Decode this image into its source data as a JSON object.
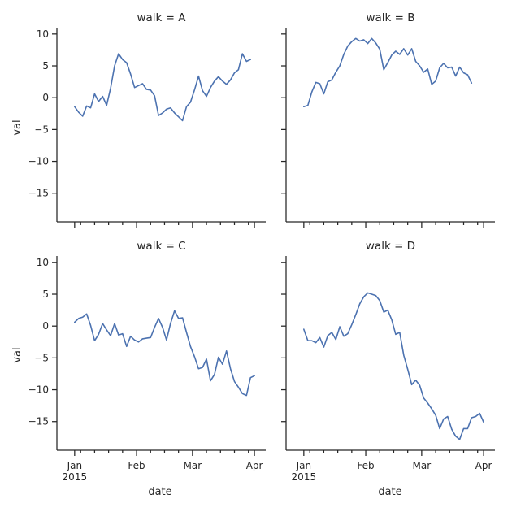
{
  "colors": {
    "line": "#4c72b0",
    "axis": "#262626",
    "background": "#ffffff"
  },
  "chart_data": {
    "type": "line",
    "facet_var": "walk",
    "xlabel": "date",
    "ylabel": "val",
    "xlim": [
      "2014-12-28",
      "2015-04-03"
    ],
    "ylim": [
      -19.5,
      11
    ],
    "yticks": [
      10,
      5,
      0,
      -5,
      -10,
      -15
    ],
    "xticks_major": [
      {
        "date": "2015-01-01",
        "label": "Jan",
        "sublabel": "2015"
      },
      {
        "date": "2015-02-01",
        "label": "Feb",
        "sublabel": ""
      },
      {
        "date": "2015-03-01",
        "label": "Mar",
        "sublabel": ""
      },
      {
        "date": "2015-04-01",
        "label": "Apr",
        "sublabel": ""
      }
    ],
    "xticks_minor": [
      "2015-01-04",
      "2015-01-11",
      "2015-01-18",
      "2015-01-25",
      "2015-02-08",
      "2015-02-15",
      "2015-02-22",
      "2015-03-08",
      "2015-03-15",
      "2015-03-22",
      "2015-03-29"
    ],
    "grid": false,
    "legend": "none",
    "panels": [
      {
        "title": "walk = A",
        "points": [
          [
            "2015-01-01",
            -1.4
          ],
          [
            "2015-01-03",
            -2.3
          ],
          [
            "2015-01-05",
            -2.9
          ],
          [
            "2015-01-07",
            -1.3
          ],
          [
            "2015-01-09",
            -1.6
          ],
          [
            "2015-01-11",
            0.6
          ],
          [
            "2015-01-13",
            -0.6
          ],
          [
            "2015-01-15",
            0.2
          ],
          [
            "2015-01-17",
            -1.2
          ],
          [
            "2015-01-19",
            1.5
          ],
          [
            "2015-01-21",
            5.0
          ],
          [
            "2015-01-23",
            6.9
          ],
          [
            "2015-01-25",
            6.0
          ],
          [
            "2015-01-27",
            5.5
          ],
          [
            "2015-01-29",
            3.7
          ],
          [
            "2015-01-31",
            1.6
          ],
          [
            "2015-02-02",
            1.9
          ],
          [
            "2015-02-04",
            2.2
          ],
          [
            "2015-02-06",
            1.3
          ],
          [
            "2015-02-08",
            1.2
          ],
          [
            "2015-02-10",
            0.3
          ],
          [
            "2015-02-12",
            -2.8
          ],
          [
            "2015-02-14",
            -2.4
          ],
          [
            "2015-02-16",
            -1.8
          ],
          [
            "2015-02-18",
            -1.6
          ],
          [
            "2015-02-20",
            -2.4
          ],
          [
            "2015-02-22",
            -3.0
          ],
          [
            "2015-02-24",
            -3.6
          ],
          [
            "2015-02-26",
            -1.4
          ],
          [
            "2015-02-28",
            -0.7
          ],
          [
            "2015-03-02",
            1.2
          ],
          [
            "2015-03-04",
            3.4
          ],
          [
            "2015-03-06",
            1.1
          ],
          [
            "2015-03-08",
            0.2
          ],
          [
            "2015-03-10",
            1.6
          ],
          [
            "2015-03-12",
            2.6
          ],
          [
            "2015-03-14",
            3.3
          ],
          [
            "2015-03-16",
            2.6
          ],
          [
            "2015-03-18",
            2.1
          ],
          [
            "2015-03-20",
            2.8
          ],
          [
            "2015-03-22",
            3.9
          ],
          [
            "2015-03-24",
            4.4
          ],
          [
            "2015-03-26",
            6.9
          ],
          [
            "2015-03-28",
            5.7
          ],
          [
            "2015-03-30",
            6.0
          ]
        ]
      },
      {
        "title": "walk = B",
        "points": [
          [
            "2015-01-01",
            -1.4
          ],
          [
            "2015-01-03",
            -1.2
          ],
          [
            "2015-01-05",
            0.9
          ],
          [
            "2015-01-07",
            2.4
          ],
          [
            "2015-01-09",
            2.2
          ],
          [
            "2015-01-11",
            0.6
          ],
          [
            "2015-01-13",
            2.5
          ],
          [
            "2015-01-15",
            2.8
          ],
          [
            "2015-01-17",
            4.0
          ],
          [
            "2015-01-19",
            5.0
          ],
          [
            "2015-01-21",
            6.8
          ],
          [
            "2015-01-23",
            8.1
          ],
          [
            "2015-01-25",
            8.8
          ],
          [
            "2015-01-27",
            9.3
          ],
          [
            "2015-01-29",
            8.9
          ],
          [
            "2015-01-31",
            9.1
          ],
          [
            "2015-02-02",
            8.5
          ],
          [
            "2015-02-04",
            9.3
          ],
          [
            "2015-02-06",
            8.6
          ],
          [
            "2015-02-08",
            7.6
          ],
          [
            "2015-02-10",
            4.4
          ],
          [
            "2015-02-12",
            5.5
          ],
          [
            "2015-02-14",
            6.7
          ],
          [
            "2015-02-16",
            7.3
          ],
          [
            "2015-02-18",
            6.8
          ],
          [
            "2015-02-20",
            7.7
          ],
          [
            "2015-02-22",
            6.7
          ],
          [
            "2015-02-24",
            7.7
          ],
          [
            "2015-02-26",
            5.7
          ],
          [
            "2015-02-28",
            5.0
          ],
          [
            "2015-03-02",
            4.0
          ],
          [
            "2015-03-04",
            4.5
          ],
          [
            "2015-03-06",
            2.1
          ],
          [
            "2015-03-08",
            2.6
          ],
          [
            "2015-03-10",
            4.7
          ],
          [
            "2015-03-12",
            5.4
          ],
          [
            "2015-03-14",
            4.7
          ],
          [
            "2015-03-16",
            4.8
          ],
          [
            "2015-03-18",
            3.4
          ],
          [
            "2015-03-20",
            4.8
          ],
          [
            "2015-03-22",
            3.9
          ],
          [
            "2015-03-24",
            3.6
          ],
          [
            "2015-03-26",
            2.3
          ]
        ]
      },
      {
        "title": "walk = C",
        "points": [
          [
            "2015-01-01",
            0.6
          ],
          [
            "2015-01-03",
            1.2
          ],
          [
            "2015-01-05",
            1.4
          ],
          [
            "2015-01-07",
            1.9
          ],
          [
            "2015-01-09",
            0.1
          ],
          [
            "2015-01-11",
            -2.3
          ],
          [
            "2015-01-13",
            -1.3
          ],
          [
            "2015-01-15",
            0.4
          ],
          [
            "2015-01-17",
            -0.6
          ],
          [
            "2015-01-19",
            -1.5
          ],
          [
            "2015-01-21",
            0.4
          ],
          [
            "2015-01-23",
            -1.4
          ],
          [
            "2015-01-25",
            -1.2
          ],
          [
            "2015-01-27",
            -3.2
          ],
          [
            "2015-01-29",
            -1.6
          ],
          [
            "2015-01-31",
            -2.2
          ],
          [
            "2015-02-02",
            -2.5
          ],
          [
            "2015-02-04",
            -2.0
          ],
          [
            "2015-02-06",
            -1.9
          ],
          [
            "2015-02-08",
            -1.8
          ],
          [
            "2015-02-10",
            -0.2
          ],
          [
            "2015-02-12",
            1.2
          ],
          [
            "2015-02-14",
            -0.2
          ],
          [
            "2015-02-16",
            -2.2
          ],
          [
            "2015-02-18",
            0.4
          ],
          [
            "2015-02-20",
            2.4
          ],
          [
            "2015-02-22",
            1.2
          ],
          [
            "2015-02-24",
            1.3
          ],
          [
            "2015-02-26",
            -1.0
          ],
          [
            "2015-02-28",
            -3.2
          ],
          [
            "2015-03-02",
            -4.8
          ],
          [
            "2015-03-04",
            -6.7
          ],
          [
            "2015-03-06",
            -6.5
          ],
          [
            "2015-03-08",
            -5.2
          ],
          [
            "2015-03-10",
            -8.6
          ],
          [
            "2015-03-12",
            -7.6
          ],
          [
            "2015-03-14",
            -4.9
          ],
          [
            "2015-03-16",
            -6.0
          ],
          [
            "2015-03-18",
            -3.9
          ],
          [
            "2015-03-20",
            -6.7
          ],
          [
            "2015-03-22",
            -8.7
          ],
          [
            "2015-03-24",
            -9.6
          ],
          [
            "2015-03-26",
            -10.6
          ],
          [
            "2015-03-28",
            -10.9
          ],
          [
            "2015-03-30",
            -8.1
          ],
          [
            "2015-04-01",
            -7.8
          ]
        ]
      },
      {
        "title": "walk = D",
        "points": [
          [
            "2015-01-01",
            -0.5
          ],
          [
            "2015-01-03",
            -2.3
          ],
          [
            "2015-01-05",
            -2.3
          ],
          [
            "2015-01-07",
            -2.6
          ],
          [
            "2015-01-09",
            -1.8
          ],
          [
            "2015-01-11",
            -3.3
          ],
          [
            "2015-01-13",
            -1.5
          ],
          [
            "2015-01-15",
            -1.0
          ],
          [
            "2015-01-17",
            -2.1
          ],
          [
            "2015-01-19",
            -0.1
          ],
          [
            "2015-01-21",
            -1.6
          ],
          [
            "2015-01-23",
            -1.2
          ],
          [
            "2015-01-25",
            0.2
          ],
          [
            "2015-01-27",
            1.8
          ],
          [
            "2015-01-29",
            3.5
          ],
          [
            "2015-01-31",
            4.6
          ],
          [
            "2015-02-02",
            5.2
          ],
          [
            "2015-02-04",
            5.0
          ],
          [
            "2015-02-06",
            4.8
          ],
          [
            "2015-02-08",
            4.0
          ],
          [
            "2015-02-10",
            2.2
          ],
          [
            "2015-02-12",
            2.5
          ],
          [
            "2015-02-14",
            1.0
          ],
          [
            "2015-02-16",
            -1.3
          ],
          [
            "2015-02-18",
            -1.0
          ],
          [
            "2015-02-20",
            -4.6
          ],
          [
            "2015-02-22",
            -6.8
          ],
          [
            "2015-02-24",
            -9.2
          ],
          [
            "2015-02-26",
            -8.5
          ],
          [
            "2015-02-28",
            -9.3
          ],
          [
            "2015-03-02",
            -11.3
          ],
          [
            "2015-03-04",
            -12.1
          ],
          [
            "2015-03-06",
            -13.0
          ],
          [
            "2015-03-08",
            -14.0
          ],
          [
            "2015-03-10",
            -16.1
          ],
          [
            "2015-03-12",
            -14.6
          ],
          [
            "2015-03-14",
            -14.2
          ],
          [
            "2015-03-16",
            -16.2
          ],
          [
            "2015-03-18",
            -17.3
          ],
          [
            "2015-03-20",
            -17.8
          ],
          [
            "2015-03-22",
            -16.1
          ],
          [
            "2015-03-24",
            -16.1
          ],
          [
            "2015-03-26",
            -14.4
          ],
          [
            "2015-03-28",
            -14.2
          ],
          [
            "2015-03-30",
            -13.7
          ],
          [
            "2015-04-01",
            -15.1
          ]
        ]
      }
    ]
  }
}
